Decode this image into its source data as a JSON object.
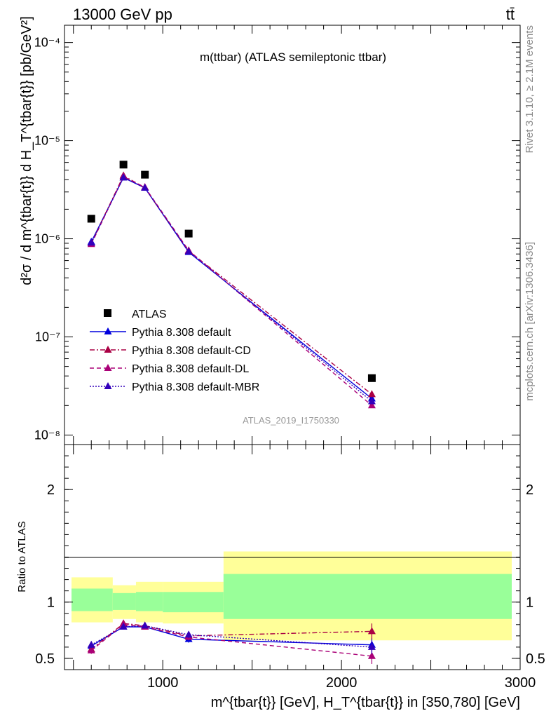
{
  "header": {
    "energy_label": "13000 GeV pp",
    "process_label": "tt̄",
    "rivet_label": "Rivet 3.1.10, ≥ 2.1M events",
    "site_label": "mcplots.cern.ch [arXiv:1306.3436]",
    "analysis_id": "ATLAS_2019_I1750330"
  },
  "chart_data": [
    {
      "panel": "main",
      "type": "scatter",
      "title": "m(ttbar) (ATLAS semileptonic ttbar)",
      "ylabel": "d²σ / d m^{tbar{t}} d H_T^{tbar{t}} [pb/GeV²]",
      "xlabel": "",
      "yscale": "log",
      "ylim": [
        8e-09,
        0.00015
      ],
      "xlim": [
        450,
        3000
      ],
      "ytick_labels": [
        "10⁻⁸",
        "10⁻⁷",
        "10⁻⁶",
        "10⁻⁵",
        "10⁻⁴"
      ],
      "legend_position": "center-left",
      "x": [
        600,
        780,
        900,
        1145,
        2170
      ],
      "series": [
        {
          "name": "ATLAS",
          "color": "#000000",
          "style": "marker-square",
          "values": [
            1.6e-06,
            5.7e-06,
            4.5e-06,
            1.13e-06,
            3.8e-08
          ]
        },
        {
          "name": "Pythia 8.308 default",
          "color": "#0000dd",
          "style": "solid",
          "values": [
            9.3e-07,
            4.2e-06,
            3.3e-06,
            7.3e-07,
            2.35e-08
          ]
        },
        {
          "name": "Pythia 8.308 default-CD",
          "color": "#aa0044",
          "style": "dashdot",
          "values": [
            9e-07,
            4.4e-06,
            3.3e-06,
            7.5e-07,
            2.6e-08
          ]
        },
        {
          "name": "Pythia 8.308 default-DL",
          "color": "#aa0077",
          "style": "dashed",
          "values": [
            8.8e-07,
            4.3e-06,
            3.35e-06,
            7.6e-07,
            2e-08
          ]
        },
        {
          "name": "Pythia 8.308 default-MBR",
          "color": "#3300bb",
          "style": "dotted",
          "values": [
            9.1e-07,
            4.2e-06,
            3.3e-06,
            7.4e-07,
            2.2e-08
          ]
        }
      ]
    },
    {
      "panel": "ratio",
      "type": "line",
      "ylabel": "Ratio to ATLAS",
      "xlabel": "m^{tbar{t}} [GeV], H_T^{tbar{t}} in [350,780] [GeV]",
      "ylim": [
        0.4,
        2.4
      ],
      "xlim": [
        450,
        3000
      ],
      "ytick_labels": [
        "0.5",
        "1",
        "2"
      ],
      "xtick_labels": [
        "1000",
        "2000",
        "3000"
      ],
      "x": [
        600,
        780,
        900,
        1145,
        2170
      ],
      "bands": [
        {
          "x0": 450,
          "x1": 720,
          "inner": [
            0.92,
            1.12
          ],
          "outer": [
            0.82,
            1.22
          ]
        },
        {
          "x0": 720,
          "x1": 850,
          "inner": [
            0.93,
            1.08
          ],
          "outer": [
            0.85,
            1.15
          ]
        },
        {
          "x0": 850,
          "x1": 1000,
          "inner": [
            0.92,
            1.09
          ],
          "outer": [
            0.82,
            1.18
          ]
        },
        {
          "x0": 1000,
          "x1": 1340,
          "inner": [
            0.91,
            1.09
          ],
          "outer": [
            0.81,
            1.18
          ]
        },
        {
          "x0": 1340,
          "x1": 3000,
          "inner": [
            0.85,
            1.25
          ],
          "outer": [
            0.66,
            1.45
          ]
        }
      ],
      "series": [
        {
          "name": "Pythia 8.308 default",
          "color": "#0000dd",
          "style": "solid",
          "values": [
            0.61,
            0.78,
            0.78,
            0.67,
            0.62
          ],
          "errors": [
            0.03,
            0.02,
            0.02,
            0.03,
            0.06
          ]
        },
        {
          "name": "Pythia 8.308 default-CD",
          "color": "#aa0044",
          "style": "dashdot",
          "values": [
            0.58,
            0.81,
            0.79,
            0.7,
            0.74
          ],
          "errors": [
            0.03,
            0.02,
            0.02,
            0.03,
            0.07
          ]
        },
        {
          "name": "Pythia 8.308 default-DL",
          "color": "#aa0077",
          "style": "dashed",
          "values": [
            0.57,
            0.8,
            0.78,
            0.69,
            0.52
          ],
          "errors": [
            0.03,
            0.02,
            0.02,
            0.03,
            0.07
          ]
        },
        {
          "name": "Pythia 8.308 default-MBR",
          "color": "#3300bb",
          "style": "dotted",
          "values": [
            0.62,
            0.78,
            0.79,
            0.71,
            0.6
          ],
          "errors": [
            0.03,
            0.02,
            0.02,
            0.03,
            0.06
          ]
        }
      ]
    }
  ]
}
